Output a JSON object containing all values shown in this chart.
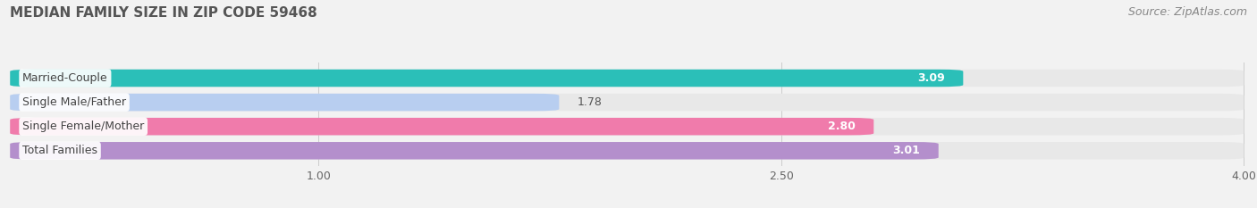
{
  "title": "MEDIAN FAMILY SIZE IN ZIP CODE 59468",
  "source": "Source: ZipAtlas.com",
  "categories": [
    "Married-Couple",
    "Single Male/Father",
    "Single Female/Mother",
    "Total Families"
  ],
  "values": [
    3.09,
    1.78,
    2.8,
    3.01
  ],
  "bar_colors": [
    "#2bbfb8",
    "#b8cef0",
    "#f07bab",
    "#b48fcc"
  ],
  "bar_bg_color": "#e8e8e8",
  "value_colors_inside": [
    true,
    false,
    true,
    true
  ],
  "xticks": [
    1.0,
    2.5,
    4.0
  ],
  "xtick_labels": [
    "1.00",
    "2.50",
    "4.00"
  ],
  "xmin": 0.0,
  "xmax": 4.0,
  "title_fontsize": 11,
  "tick_fontsize": 9,
  "value_fontsize": 9,
  "label_fontsize": 9,
  "source_fontsize": 9,
  "background_color": "#f2f2f2",
  "bar_height": 0.72,
  "n_bars": 4
}
